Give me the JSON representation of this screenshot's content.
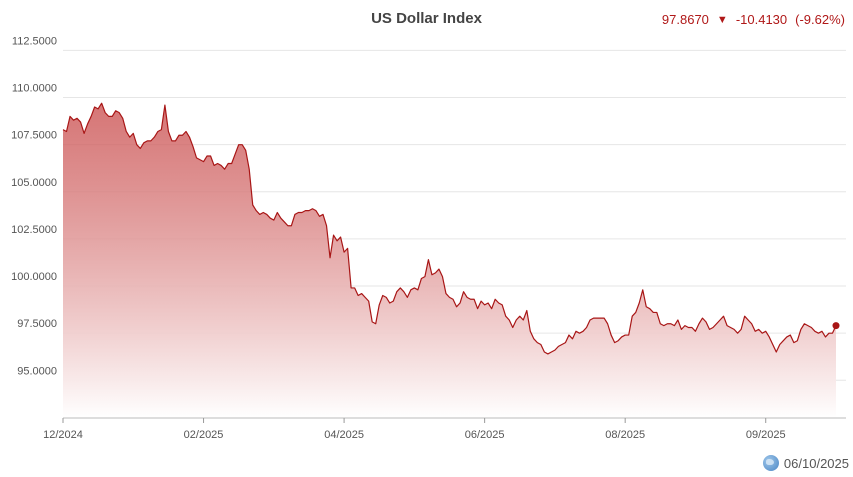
{
  "header": {
    "title": "US Dollar Index",
    "last_value": "97.8670",
    "change_arrow": "▼",
    "change": "-10.4130",
    "change_pct": "(-9.62%)",
    "down_color": "#b01818"
  },
  "footer": {
    "date": "06/10/2025",
    "icon": "globe-icon"
  },
  "chart_data": {
    "type": "area",
    "title": "US Dollar Index",
    "xlabel": "",
    "ylabel": "",
    "x_ticks": [
      "12/2024",
      "02/2025",
      "04/2025",
      "06/2025",
      "08/2025",
      "09/2025"
    ],
    "x_tick_index": [
      0,
      40,
      80,
      120,
      160,
      200
    ],
    "y_ticks": [
      "95.0000",
      "97.5000",
      "100.0000",
      "102.5000",
      "105.0000",
      "107.5000",
      "110.0000",
      "112.5000"
    ],
    "ylim": [
      93.0,
      113.0
    ],
    "grid": true,
    "line_color": "#a81616",
    "fill_top_color": "#c84848",
    "fill_bottom_color": "#ffffff",
    "last_marker": true,
    "series": [
      {
        "values": [
          108.3,
          108.2,
          109.0,
          108.8,
          108.9,
          108.7,
          108.1,
          108.6,
          109.0,
          109.5,
          109.4,
          109.7,
          109.2,
          109.0,
          109.0,
          109.3,
          109.2,
          108.9,
          108.2,
          107.9,
          108.1,
          107.5,
          107.3,
          107.6,
          107.7,
          107.7,
          107.9,
          108.2,
          108.3,
          109.6,
          108.2,
          107.7,
          107.7,
          108.0,
          108.0,
          108.2,
          107.9,
          107.4,
          106.8,
          106.7,
          106.6,
          106.9,
          106.9,
          106.4,
          106.5,
          106.4,
          106.2,
          106.5,
          106.5,
          107.0,
          107.5,
          107.5,
          107.2,
          106.2,
          104.3,
          104.0,
          103.8,
          103.9,
          103.8,
          103.6,
          103.5,
          103.9,
          103.6,
          103.4,
          103.2,
          103.2,
          103.8,
          103.9,
          103.9,
          104.0,
          104.0,
          104.1,
          104.0,
          103.7,
          103.8,
          103.2,
          101.5,
          102.7,
          102.4,
          102.6,
          101.8,
          102.0,
          99.9,
          99.9,
          99.5,
          99.6,
          99.4,
          99.2,
          98.1,
          98.0,
          99.0,
          99.5,
          99.4,
          99.1,
          99.2,
          99.7,
          99.9,
          99.7,
          99.4,
          99.8,
          99.9,
          99.8,
          100.4,
          100.5,
          101.4,
          100.6,
          100.7,
          100.9,
          100.5,
          99.6,
          99.4,
          99.3,
          98.9,
          99.1,
          99.7,
          99.4,
          99.3,
          99.3,
          98.8,
          99.2,
          99.0,
          99.1,
          98.8,
          99.3,
          99.1,
          99.0,
          98.4,
          98.2,
          97.8,
          98.2,
          98.4,
          98.2,
          98.7,
          97.6,
          97.2,
          97.0,
          96.9,
          96.5,
          96.4,
          96.5,
          96.6,
          96.8,
          96.9,
          97.0,
          97.4,
          97.2,
          97.6,
          97.5,
          97.6,
          97.8,
          98.2,
          98.3,
          98.3,
          98.3,
          98.3,
          98.0,
          97.4,
          97.0,
          97.1,
          97.3,
          97.4,
          97.4,
          98.4,
          98.6,
          99.1,
          99.8,
          98.9,
          98.8,
          98.6,
          98.6,
          98.0,
          97.9,
          98.0,
          98.0,
          97.9,
          98.2,
          97.7,
          97.9,
          97.8,
          97.8,
          97.6,
          98.0,
          98.3,
          98.1,
          97.7,
          97.8,
          98.0,
          98.2,
          98.4,
          97.9,
          97.8,
          97.7,
          97.5,
          97.7,
          98.4,
          98.2,
          98.0,
          97.6,
          97.7,
          97.5,
          97.6,
          97.3,
          96.9,
          96.5,
          96.9,
          97.1,
          97.3,
          97.4,
          97.0,
          97.1,
          97.7,
          98.0,
          97.9,
          97.8,
          97.6,
          97.5,
          97.6,
          97.3,
          97.5,
          97.5,
          97.9
        ]
      }
    ]
  }
}
